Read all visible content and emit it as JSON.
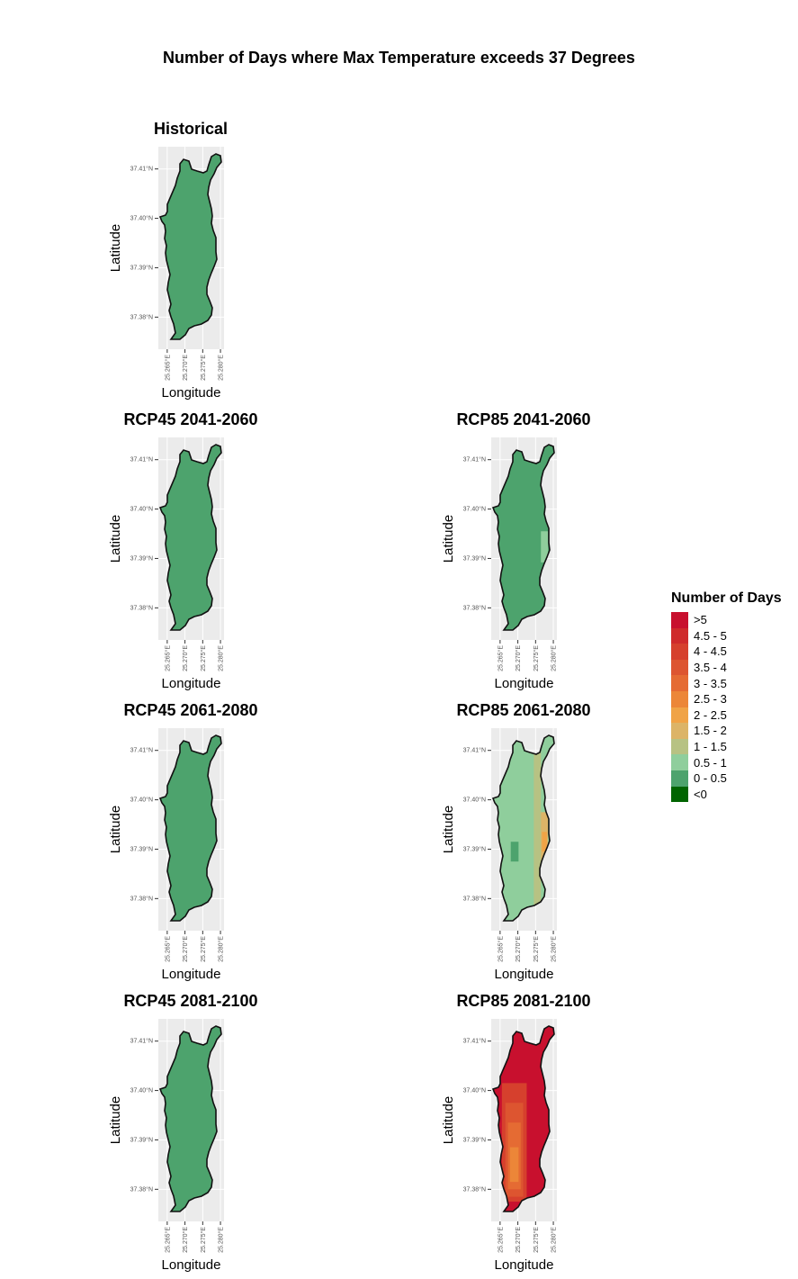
{
  "figure_title": "Number of Days where Max Temperature exceeds 37 Degrees",
  "chart_data": [
    {
      "type": "heatmap",
      "title": "Historical",
      "xlabel": "Longitude",
      "ylabel": "Latitude",
      "xlim": [
        25.2625,
        25.281
      ],
      "ylim": [
        37.3735,
        37.4145
      ],
      "x_ticks": [
        "25.265°E",
        "25.270°E",
        "25.275°E",
        "25.280°E"
      ],
      "y_ticks": [
        "37.38°N",
        "37.39°N",
        "37.40°N",
        "37.41°N"
      ],
      "uniform_class": "0 - 0.5"
    },
    {
      "type": "heatmap",
      "title": "RCP45 2041-2060",
      "xlabel": "Longitude",
      "ylabel": "Latitude",
      "xlim": [
        25.2625,
        25.281
      ],
      "ylim": [
        37.3735,
        37.4145
      ],
      "x_ticks": [
        "25.265°E",
        "25.270°E",
        "25.275°E",
        "25.280°E"
      ],
      "y_ticks": [
        "37.38°N",
        "37.39°N",
        "37.40°N",
        "37.41°N"
      ],
      "uniform_class": "0 - 0.5"
    },
    {
      "type": "heatmap",
      "title": "RCP85 2041-2060",
      "xlabel": "Longitude",
      "ylabel": "Latitude",
      "xlim": [
        25.2625,
        25.281
      ],
      "ylim": [
        37.3735,
        37.4145
      ],
      "x_ticks": [
        "25.265°E",
        "25.270°E",
        "25.275°E",
        "25.280°E"
      ],
      "y_ticks": [
        "37.38°N",
        "37.39°N",
        "37.40°N",
        "37.41°N"
      ],
      "uniform_class": "0 - 0.5",
      "patches": [
        {
          "class": "0.5 - 1",
          "lon": [
            25.2765,
            25.2785
          ],
          "lat": [
            37.3892,
            37.3955
          ]
        }
      ]
    },
    {
      "type": "heatmap",
      "title": "RCP45 2061-2080",
      "xlabel": "Longitude",
      "ylabel": "Latitude",
      "xlim": [
        25.2625,
        25.281
      ],
      "ylim": [
        37.3735,
        37.4145
      ],
      "x_ticks": [
        "25.265°E",
        "25.270°E",
        "25.275°E",
        "25.280°E"
      ],
      "y_ticks": [
        "37.38°N",
        "37.39°N",
        "37.40°N",
        "37.41°N"
      ],
      "uniform_class": "0 - 0.5"
    },
    {
      "type": "heatmap",
      "title": "RCP85 2061-2080",
      "xlabel": "Longitude",
      "ylabel": "Latitude",
      "xlim": [
        25.2625,
        25.281
      ],
      "ylim": [
        37.3735,
        37.4145
      ],
      "x_ticks": [
        "25.265°E",
        "25.270°E",
        "25.275°E",
        "25.280°E"
      ],
      "y_ticks": [
        "37.38°N",
        "37.39°N",
        "37.40°N",
        "37.41°N"
      ],
      "uniform_class": "0.5 - 1",
      "patches": [
        {
          "class": "1 - 1.5",
          "lon": [
            25.2745,
            25.2765
          ],
          "lat": [
            37.3785,
            37.4115
          ]
        },
        {
          "class": "1.5 - 2",
          "lon": [
            25.2765,
            25.2785
          ],
          "lat": [
            37.3865,
            37.3975
          ]
        },
        {
          "class": "2 - 2.5",
          "lon": [
            25.2768,
            25.2782
          ],
          "lat": [
            37.3895,
            37.3935
          ]
        },
        {
          "class": "0 - 0.5",
          "lon": [
            25.268,
            25.2702
          ],
          "lat": [
            37.3875,
            37.3915
          ]
        }
      ]
    },
    {
      "type": "heatmap",
      "title": "RCP45 2081-2100",
      "xlabel": "Longitude",
      "ylabel": "Latitude",
      "xlim": [
        25.2625,
        25.281
      ],
      "ylim": [
        37.3735,
        37.4145
      ],
      "x_ticks": [
        "25.265°E",
        "25.270°E",
        "25.275°E",
        "25.280°E"
      ],
      "y_ticks": [
        "37.38°N",
        "37.39°N",
        "37.40°N",
        "37.41°N"
      ],
      "uniform_class": "0 - 0.5"
    },
    {
      "type": "heatmap",
      "title": "RCP85 2081-2100",
      "xlabel": "Longitude",
      "ylabel": "Latitude",
      "xlim": [
        25.2625,
        25.281
      ],
      "ylim": [
        37.3735,
        37.4145
      ],
      "x_ticks": [
        "25.265°E",
        "25.270°E",
        "25.275°E",
        "25.280°E"
      ],
      "y_ticks": [
        "37.38°N",
        "37.39°N",
        "37.40°N",
        "37.41°N"
      ],
      "uniform_class": ">5",
      "patches": [
        {
          "class": "4 - 4.5",
          "lon": [
            25.2655,
            25.2725
          ],
          "lat": [
            37.3775,
            37.4015
          ]
        },
        {
          "class": "3.5 - 4",
          "lon": [
            25.2665,
            25.2715
          ],
          "lat": [
            37.3785,
            37.3975
          ]
        },
        {
          "class": "3 - 3.5",
          "lon": [
            25.2672,
            25.2708
          ],
          "lat": [
            37.38,
            37.3935
          ]
        },
        {
          "class": "2.5 - 3",
          "lon": [
            25.2678,
            25.2702
          ],
          "lat": [
            37.3815,
            37.3885
          ]
        }
      ]
    }
  ],
  "legend": {
    "title": "Number of Days",
    "items": [
      {
        "label": ">5",
        "color": "#c8102e"
      },
      {
        "label": "4.5 - 5",
        "color": "#cf2a2b"
      },
      {
        "label": "4 - 4.5",
        "color": "#d6402d"
      },
      {
        "label": "3.5 - 4",
        "color": "#dd5530"
      },
      {
        "label": "3 - 3.5",
        "color": "#e56b33"
      },
      {
        "label": "2.5 - 3",
        "color": "#ec8638"
      },
      {
        "label": "2 - 2.5",
        "color": "#f0a346"
      },
      {
        "label": "1.5 - 2",
        "color": "#dcb467"
      },
      {
        "label": "1 - 1.5",
        "color": "#b7c283"
      },
      {
        "label": "0.5 - 1",
        "color": "#8fce9c"
      },
      {
        "label": "0 - 0.5",
        "color": "#4da36d"
      },
      {
        "label": "<0",
        "color": "#006400"
      }
    ]
  }
}
